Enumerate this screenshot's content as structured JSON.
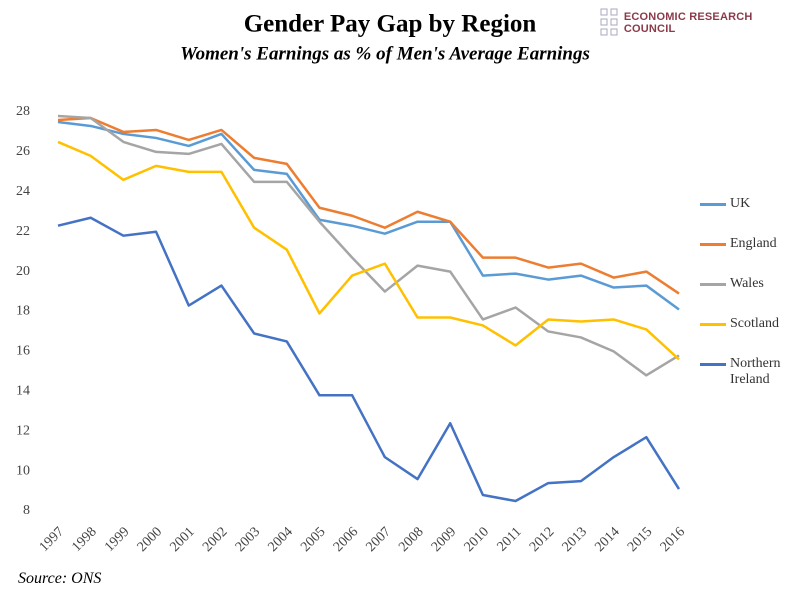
{
  "logo": "ECONOMIC RESEARCH COUNCIL",
  "source": "Source: ONS",
  "chart_data": {
    "type": "line",
    "title": "Gender Pay Gap by Region",
    "subtitle": "Women's Earnings as % of Men's Average Earnings",
    "categories": [
      "1997",
      "1998",
      "1999",
      "2000",
      "2001",
      "2002",
      "2003",
      "2004",
      "2005",
      "2006",
      "2007",
      "2008",
      "2009",
      "2010",
      "2011",
      "2012",
      "2013",
      "2014",
      "2015",
      "2016"
    ],
    "ylim": [
      8,
      28
    ],
    "yticks": [
      8,
      10,
      12,
      14,
      16,
      18,
      20,
      22,
      24,
      26,
      28
    ],
    "grid": false,
    "legend": "right",
    "series": [
      {
        "name": "UK",
        "color": "#5b9bd5",
        "values": [
          27.5,
          27.3,
          26.9,
          26.7,
          26.3,
          26.9,
          25.1,
          24.9,
          22.6,
          22.3,
          21.9,
          22.5,
          22.5,
          19.8,
          19.9,
          19.6,
          19.8,
          19.2,
          19.3,
          18.1
        ]
      },
      {
        "name": "England",
        "color": "#ed7d31",
        "values": [
          27.6,
          27.7,
          27.0,
          27.1,
          26.6,
          27.1,
          25.7,
          25.4,
          23.2,
          22.8,
          22.2,
          23.0,
          22.5,
          20.7,
          20.7,
          20.2,
          20.4,
          19.7,
          20.0,
          18.9
        ]
      },
      {
        "name": "Wales",
        "color": "#a5a5a5",
        "values": [
          27.8,
          27.7,
          26.5,
          26.0,
          25.9,
          26.4,
          24.5,
          24.5,
          22.5,
          20.7,
          19.0,
          20.3,
          20.0,
          17.6,
          18.2,
          17.0,
          16.7,
          16.0,
          14.8,
          15.8
        ]
      },
      {
        "name": "Scotland",
        "color": "#ffc000",
        "values": [
          26.5,
          25.8,
          24.6,
          25.3,
          25.0,
          25.0,
          22.2,
          21.1,
          17.9,
          19.8,
          20.4,
          17.7,
          17.7,
          17.3,
          16.3,
          17.6,
          17.5,
          17.6,
          17.1,
          15.6
        ]
      },
      {
        "name": "Northern Ireland",
        "color": "#4472c4",
        "values": [
          22.3,
          22.7,
          21.8,
          22.0,
          18.3,
          19.3,
          16.9,
          16.5,
          13.8,
          13.8,
          10.7,
          9.6,
          12.4,
          8.8,
          8.5,
          9.4,
          9.5,
          10.7,
          11.7,
          9.1
        ]
      }
    ]
  }
}
